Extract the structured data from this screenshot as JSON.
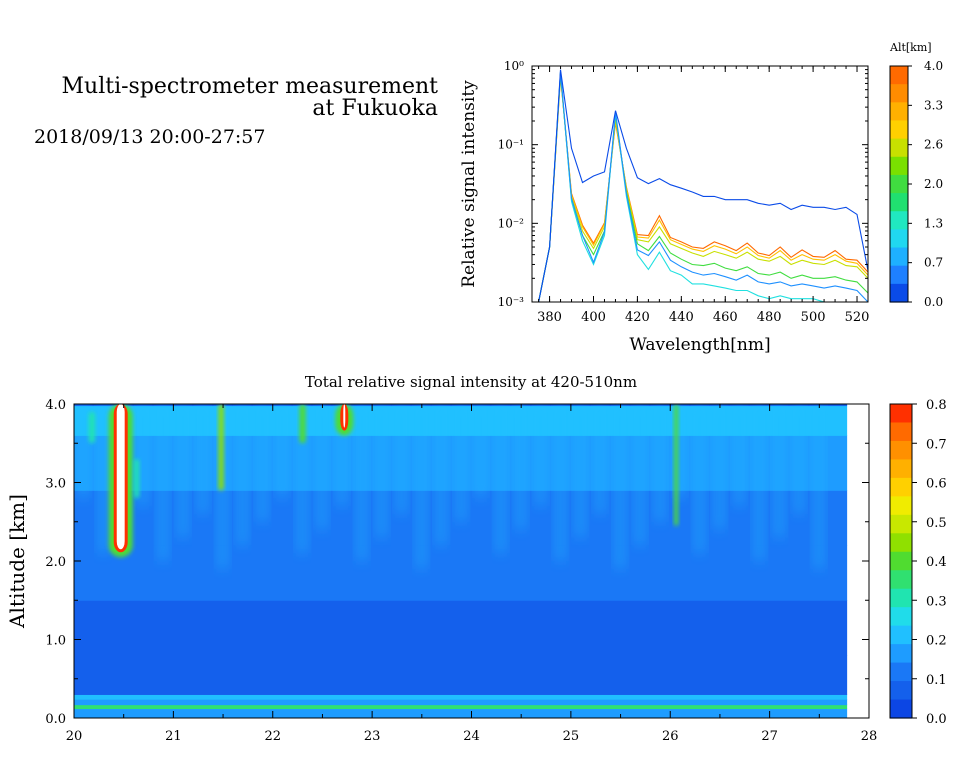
{
  "header": {
    "title_line1": "Multi-spectrometer measurement",
    "title_line2": "at Fukuoka",
    "datetime": "2018/09/13 20:00-27:57"
  },
  "chart_data": [
    {
      "type": "line",
      "name": "spectrum",
      "xlabel": "Wavelength[nm]",
      "ylabel": "Relative signal intensity",
      "xlim": [
        372,
        525
      ],
      "ylim": [
        0.001,
        1
      ],
      "yscale": "log",
      "xticks": [
        380,
        400,
        420,
        440,
        460,
        480,
        500,
        520
      ],
      "yticks": [
        {
          "value": 1,
          "label": "10⁰"
        },
        {
          "value": 0.1,
          "label": "10⁻¹"
        },
        {
          "value": 0.01,
          "label": "10⁻²"
        },
        {
          "value": 0.001,
          "label": "10⁻³"
        }
      ],
      "x": [
        375,
        380,
        385,
        390,
        395,
        400,
        405,
        410,
        415,
        420,
        425,
        430,
        435,
        440,
        445,
        450,
        455,
        460,
        465,
        470,
        475,
        480,
        485,
        490,
        495,
        500,
        505,
        510,
        515,
        520,
        525
      ],
      "series": [
        {
          "alt": 0.0,
          "color": "#0a4be8",
          "values": [
            0.001,
            0.005,
            0.9,
            0.09,
            0.033,
            0.04,
            0.045,
            0.27,
            0.09,
            0.038,
            0.032,
            0.037,
            0.031,
            0.028,
            0.025,
            0.022,
            0.022,
            0.02,
            0.02,
            0.02,
            0.018,
            0.017,
            0.018,
            0.015,
            0.017,
            0.016,
            0.016,
            0.015,
            0.016,
            0.013,
            0.0025
          ]
        },
        {
          "alt": 0.7,
          "color": "#1e90ff",
          "values": [
            0.001,
            0.005,
            0.85,
            0.021,
            0.007,
            0.0032,
            0.0078,
            0.26,
            0.024,
            0.0046,
            0.0039,
            0.0058,
            0.0034,
            0.0028,
            0.0024,
            0.0022,
            0.0023,
            0.0021,
            0.0019,
            0.0022,
            0.0018,
            0.0017,
            0.0018,
            0.0016,
            0.0017,
            0.0016,
            0.0015,
            0.0016,
            0.0015,
            0.0014,
            0.001
          ]
        },
        {
          "alt": 1.3,
          "color": "#20e0e0",
          "values": [
            0.001,
            0.005,
            0.83,
            0.019,
            0.006,
            0.003,
            0.007,
            0.25,
            0.022,
            0.004,
            0.0026,
            0.0043,
            0.0025,
            0.0022,
            0.0017,
            0.0017,
            0.0016,
            0.0015,
            0.0014,
            0.0014,
            0.0012,
            0.0011,
            0.0012,
            0.0011,
            0.0011,
            0.0011,
            0.001,
            0.001,
            0.001,
            0.001,
            0.001
          ]
        },
        {
          "alt": 2.0,
          "color": "#40dd40",
          "values": [
            0.001,
            0.005,
            0.8,
            0.02,
            0.007,
            0.004,
            0.008,
            0.24,
            0.025,
            0.0055,
            0.0045,
            0.0068,
            0.0042,
            0.0035,
            0.003,
            0.0029,
            0.0031,
            0.0027,
            0.0025,
            0.0028,
            0.0023,
            0.0022,
            0.0024,
            0.002,
            0.0022,
            0.002,
            0.002,
            0.0021,
            0.0019,
            0.0018,
            0.0013
          ]
        },
        {
          "alt": 2.6,
          "color": "#c8e000",
          "values": [
            0.001,
            0.005,
            0.78,
            0.022,
            0.008,
            0.0048,
            0.009,
            0.22,
            0.027,
            0.0062,
            0.0058,
            0.009,
            0.0055,
            0.0048,
            0.0042,
            0.0038,
            0.0044,
            0.004,
            0.0036,
            0.0043,
            0.0035,
            0.0033,
            0.0038,
            0.003,
            0.0034,
            0.0031,
            0.003,
            0.0034,
            0.0029,
            0.0028,
            0.002
          ]
        },
        {
          "alt": 3.3,
          "color": "#ffc000",
          "values": [
            0.001,
            0.005,
            0.75,
            0.023,
            0.009,
            0.0053,
            0.0098,
            0.2,
            0.028,
            0.0067,
            0.0065,
            0.011,
            0.0062,
            0.0054,
            0.0047,
            0.0044,
            0.0052,
            0.0047,
            0.0041,
            0.005,
            0.0039,
            0.0036,
            0.0045,
            0.0034,
            0.004,
            0.0035,
            0.0034,
            0.004,
            0.0033,
            0.0031,
            0.0022
          ]
        },
        {
          "alt": 4.0,
          "color": "#ff6a00",
          "values": [
            0.001,
            0.005,
            0.72,
            0.024,
            0.0095,
            0.0056,
            0.0102,
            0.19,
            0.029,
            0.0072,
            0.007,
            0.0125,
            0.0066,
            0.0058,
            0.005,
            0.0048,
            0.0058,
            0.0052,
            0.0045,
            0.0056,
            0.0042,
            0.0039,
            0.005,
            0.0037,
            0.0046,
            0.0038,
            0.0037,
            0.0045,
            0.0035,
            0.0034,
            0.0024
          ]
        }
      ],
      "colorbar": {
        "title": "Alt[km]",
        "ticks": [
          "4.0",
          "3.3",
          "2.6",
          "2.0",
          "1.3",
          "0.7",
          "0.0"
        ],
        "colors": [
          "#ff6a00",
          "#ff8c00",
          "#ffb000",
          "#ffd000",
          "#c8e000",
          "#7ae000",
          "#40dd40",
          "#20e070",
          "#20e8c0",
          "#20d8f0",
          "#1eb0ff",
          "#1e80ff",
          "#0a4be8"
        ]
      }
    },
    {
      "type": "heatmap",
      "name": "total_intensity",
      "title": "Total relative signal intensity at 420-510nm",
      "ylabel": "Altitude [km]",
      "xlim": [
        20,
        28
      ],
      "ylim": [
        0,
        4
      ],
      "xticks": [
        "20",
        "21",
        "22",
        "23",
        "24",
        "25",
        "26",
        "27",
        "28"
      ],
      "yticks": [
        "0.0",
        "1.0",
        "2.0",
        "3.0",
        "4.0"
      ],
      "data_end": 27.78,
      "hotspots": [
        {
          "x": 20.47,
          "y0": 2.15,
          "y1": 4.0,
          "w": 0.08,
          "value": 0.9
        },
        {
          "x": 21.48,
          "y0": 2.9,
          "y1": 4.0,
          "w": 0.05,
          "value": 0.45
        },
        {
          "x": 26.06,
          "y0": 2.45,
          "y1": 4.0,
          "w": 0.04,
          "value": 0.38
        },
        {
          "x": 22.3,
          "y0": 3.5,
          "y1": 4.0,
          "w": 0.06,
          "value": 0.38
        },
        {
          "x": 20.18,
          "y0": 3.5,
          "y1": 3.9,
          "w": 0.06,
          "value": 0.3
        },
        {
          "x": 20.63,
          "y0": 2.8,
          "y1": 3.3,
          "w": 0.05,
          "value": 0.3
        },
        {
          "x": 22.72,
          "y0": 3.7,
          "y1": 4.0,
          "w": 0.02,
          "value": 0.9
        }
      ],
      "colorbar": {
        "ticks": [
          "0.8",
          "0.7",
          "0.6",
          "0.5",
          "0.4",
          "0.3",
          "0.2",
          "0.1",
          "0.0"
        ],
        "colors": [
          "#ff3000",
          "#ff6a00",
          "#ff9000",
          "#ffb000",
          "#ffd000",
          "#f0ec00",
          "#c8e800",
          "#90e000",
          "#50dc30",
          "#30e070",
          "#20e4b0",
          "#20dcea",
          "#20c0ff",
          "#1e9cff",
          "#1a78f6",
          "#1460ec",
          "#0c46e4"
        ]
      }
    }
  ]
}
